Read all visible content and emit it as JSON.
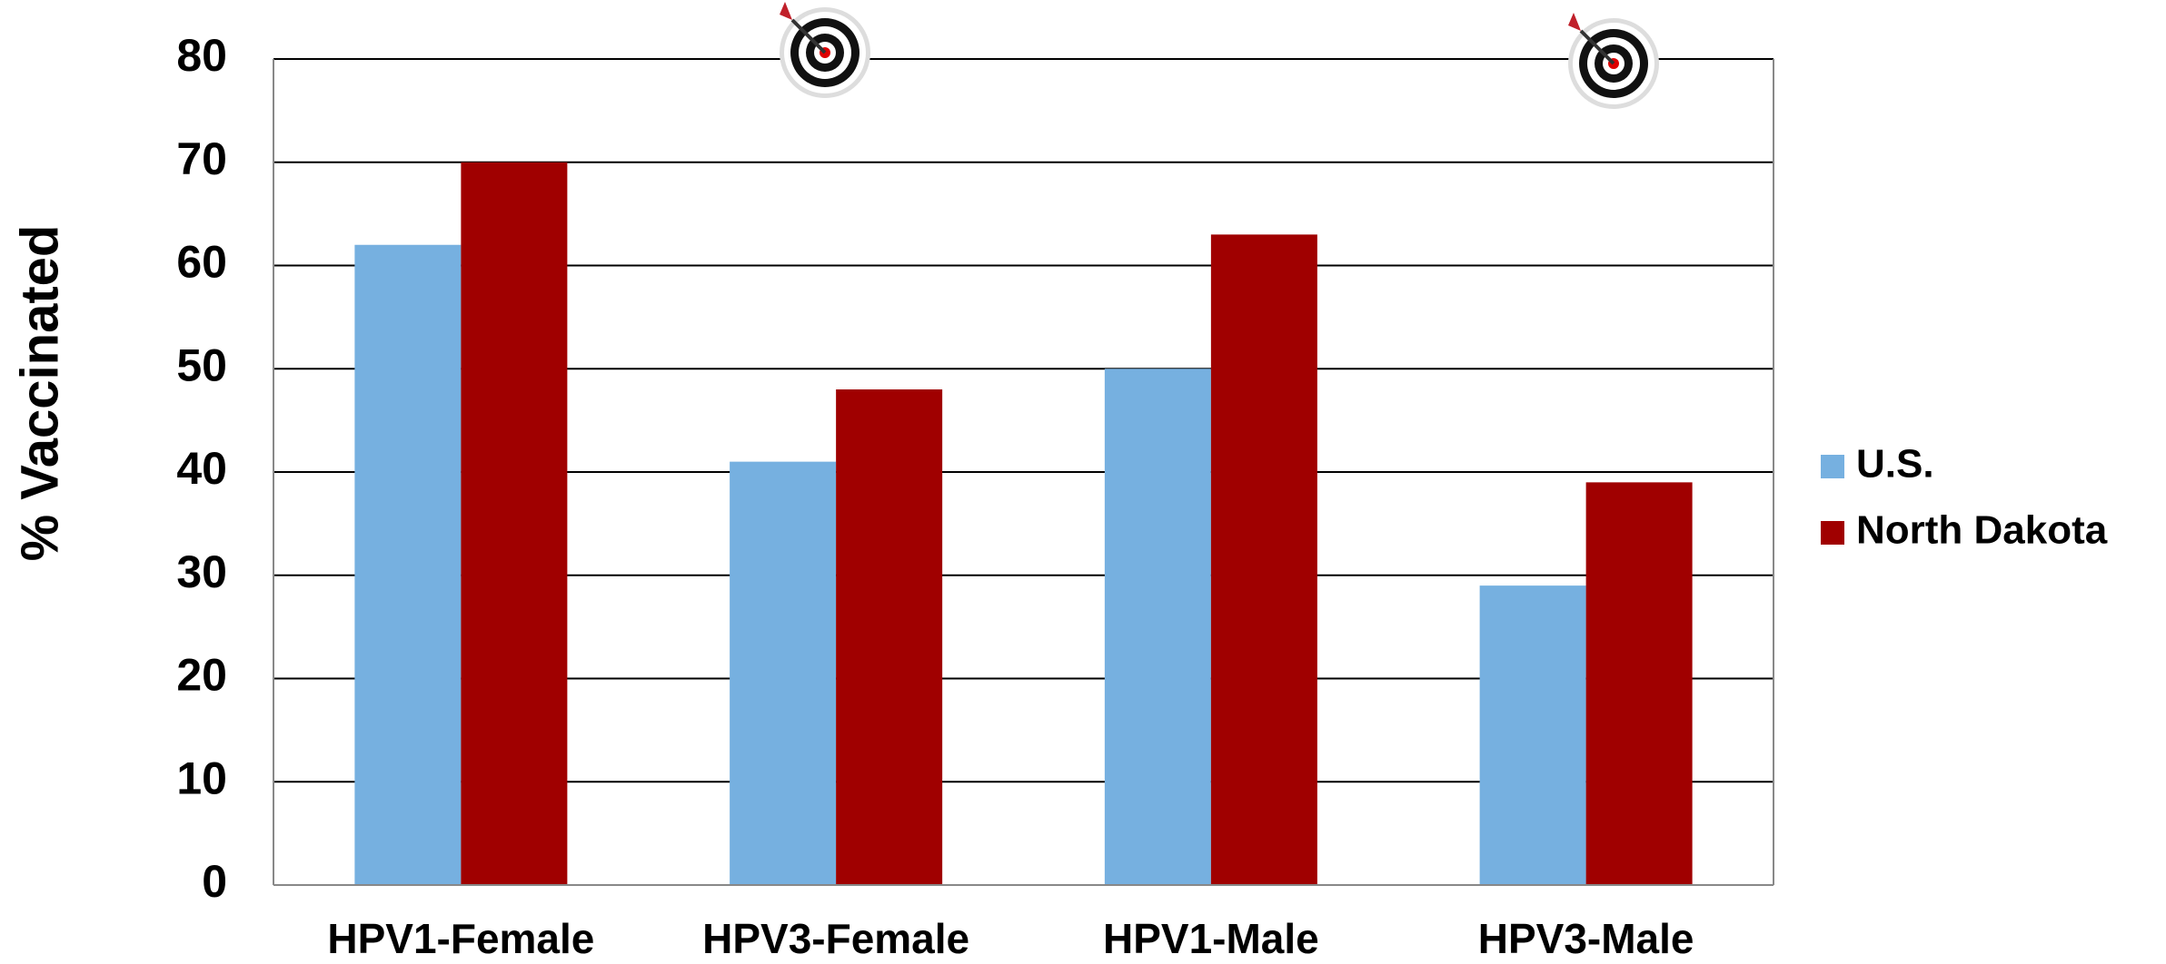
{
  "chart_data": {
    "type": "bar",
    "y_label": "% Vaccinated",
    "categories": [
      "HPV1-Female",
      "HPV3-Female",
      "HPV1-Male",
      "HPV3-Male"
    ],
    "series": [
      {
        "name": "U.S.",
        "color": "#76b0e0",
        "values": [
          62,
          41,
          50,
          29
        ]
      },
      {
        "name": "North Dakota",
        "color": "#a00000",
        "values": [
          70,
          48,
          63,
          39
        ]
      }
    ],
    "ylim": [
      0,
      80
    ],
    "yticks": [
      0,
      10,
      20,
      30,
      40,
      50,
      60,
      70,
      80
    ],
    "grid": true,
    "legend": "right"
  }
}
